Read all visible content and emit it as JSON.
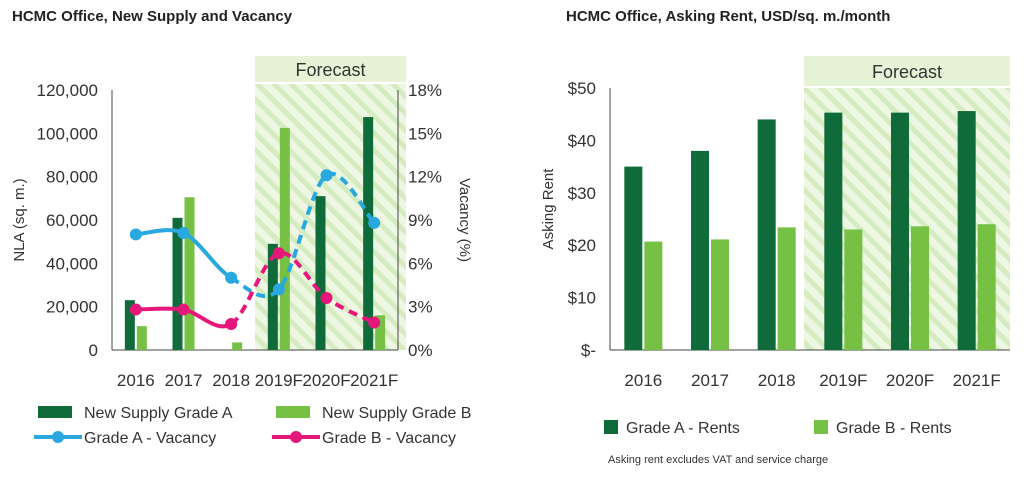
{
  "colors": {
    "grade_a": "#0f6b3a",
    "grade_b": "#76c043",
    "vac_a": "#29a8e0",
    "vac_b": "#e6177a",
    "forecast_bg": "#e6f3d6",
    "forecast_stripe": "#cfe8b8",
    "axis": "#444444"
  },
  "chart_data": [
    {
      "type": "bar",
      "title": "HCMC Office, New Supply and Vacancy",
      "categories": [
        "2016",
        "2017",
        "2018",
        "2019F",
        "2020F",
        "2021F"
      ],
      "ylabel": "NLA (sq. m.)",
      "ylim": [
        0,
        120000
      ],
      "yticks": [
        0,
        20000,
        40000,
        60000,
        80000,
        100000,
        120000
      ],
      "ytick_labels": [
        "0",
        "20,000",
        "40,000",
        "60,000",
        "80,000",
        "100,000",
        "120,000"
      ],
      "y2label": "Vacancy (%)",
      "y2lim": [
        0,
        18
      ],
      "y2ticks": [
        0,
        3,
        6,
        9,
        12,
        15,
        18
      ],
      "y2tick_labels": [
        "0%",
        "3%",
        "6%",
        "9%",
        "12%",
        "15%",
        "18%"
      ],
      "forecast_label": "Forecast",
      "forecast_from": "2019F",
      "series": [
        {
          "name": "New Supply Grade A",
          "type": "bar",
          "values": [
            23000,
            61000,
            0,
            49000,
            71000,
            107500
          ]
        },
        {
          "name": "New Supply Grade B",
          "type": "bar",
          "values": [
            11000,
            70500,
            3500,
            102500,
            0,
            16000
          ]
        },
        {
          "name": "Grade A - Vacancy",
          "type": "line",
          "axis": "right",
          "values": [
            8.0,
            8.1,
            5.0,
            4.2,
            12.1,
            8.8
          ]
        },
        {
          "name": "Grade B - Vacancy",
          "type": "line",
          "axis": "right",
          "values": [
            2.8,
            2.8,
            1.8,
            6.7,
            3.6,
            1.9
          ]
        }
      ],
      "legend": "bottom"
    },
    {
      "type": "bar",
      "title": "HCMC Office, Asking Rent, USD/sq. m./month",
      "categories": [
        "2016",
        "2017",
        "2018",
        "2019F",
        "2020F",
        "2021F"
      ],
      "ylabel": "Asking Rent",
      "ylim": [
        0,
        50
      ],
      "yticks": [
        0,
        10,
        20,
        30,
        40,
        50
      ],
      "ytick_labels": [
        "$-",
        "$10",
        "$20",
        "$30",
        "$40",
        "$50"
      ],
      "forecast_label": "Forecast",
      "forecast_from": "2019F",
      "series": [
        {
          "name": "Grade A - Rents",
          "values": [
            35,
            38,
            44,
            45.3,
            45.3,
            45.6
          ]
        },
        {
          "name": "Grade B - Rents",
          "values": [
            20.7,
            21.1,
            23.4,
            23.0,
            23.6,
            24.0
          ]
        }
      ],
      "legend": "bottom",
      "note": "Asking rent excludes VAT and service charge"
    }
  ]
}
